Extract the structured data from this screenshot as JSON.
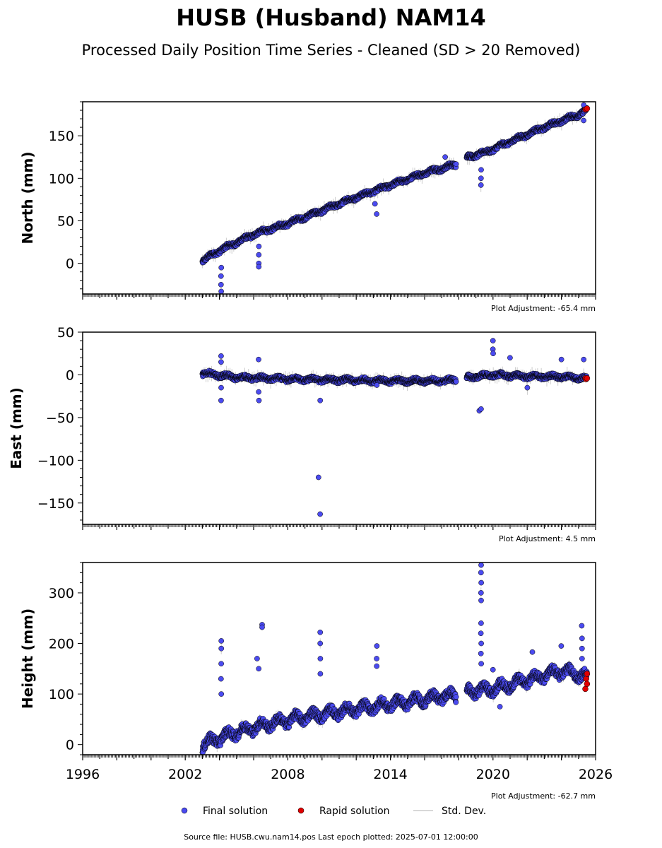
{
  "title": "HUSB (Husband) NAM14",
  "subtitle": "Processed Daily Position Time Series - Cleaned (SD > 20 Removed)",
  "footer": "Source file: HUSB.cwu.nam14.pos  Last epoch plotted: 2025-07-01 12:00:00",
  "legend": {
    "final": "Final solution",
    "rapid": "Rapid solution",
    "std": "Std. Dev."
  },
  "colors": {
    "final": "#4b4bf0",
    "rapid": "#e00000",
    "std": "#cccccc",
    "outline": "#000000"
  },
  "chart_data": [
    {
      "type": "scatter",
      "ylabel": "North (mm)",
      "adjustment": "Plot Adjustment: -65.4 mm",
      "xlim": [
        1996,
        2026
      ],
      "ylim": [
        -36,
        190
      ],
      "yticks": [
        0,
        50,
        100,
        150
      ],
      "xtick_labels": [
        "1996",
        "2002",
        "2008",
        "2014",
        "2020",
        "2026"
      ],
      "series": [
        {
          "name": "Final solution",
          "trend": [
            [
              2003.0,
              3
            ],
            [
              2004.0,
              15
            ],
            [
              2006.0,
              34
            ],
            [
              2008.0,
              47
            ],
            [
              2010.0,
              62
            ],
            [
              2012.0,
              78
            ],
            [
              2014.0,
              92
            ],
            [
              2016.0,
              106
            ],
            [
              2017.8,
              116
            ],
            [
              2018.5,
              125
            ],
            [
              2019.5,
              130
            ],
            [
              2021.0,
              143
            ],
            [
              2023.0,
              160
            ],
            [
              2025.0,
              175
            ],
            [
              2025.5,
              180
            ]
          ],
          "outliers": [
            [
              2004.1,
              -5
            ],
            [
              2004.1,
              -15
            ],
            [
              2004.1,
              -25
            ],
            [
              2004.1,
              -33
            ],
            [
              2006.3,
              20
            ],
            [
              2006.3,
              10
            ],
            [
              2006.3,
              0
            ],
            [
              2006.3,
              -4
            ],
            [
              2013.2,
              58
            ],
            [
              2013.1,
              70
            ],
            [
              2019.3,
              92
            ],
            [
              2019.3,
              100
            ],
            [
              2019.3,
              110
            ],
            [
              2017.2,
              125
            ],
            [
              2025.3,
              168
            ],
            [
              2025.3,
              186
            ]
          ]
        },
        {
          "name": "Rapid solution",
          "points": [
            [
              2025.4,
              181
            ],
            [
              2025.45,
              181
            ],
            [
              2025.5,
              182
            ]
          ]
        }
      ]
    },
    {
      "type": "scatter",
      "ylabel": "East (mm)",
      "adjustment": "Plot Adjustment: 4.5 mm",
      "xlim": [
        1996,
        2026
      ],
      "ylim": [
        -175,
        50
      ],
      "yticks": [
        -150,
        -100,
        -50,
        0,
        50
      ],
      "xtick_labels": [
        "1996",
        "2002",
        "2008",
        "2014",
        "2020",
        "2026"
      ],
      "series": [
        {
          "name": "Final solution",
          "trend": [
            [
              2003.0,
              2
            ],
            [
              2005.0,
              -3
            ],
            [
              2008.0,
              -5
            ],
            [
              2011.0,
              -6
            ],
            [
              2014.0,
              -7
            ],
            [
              2017.0,
              -7
            ],
            [
              2017.8,
              -6
            ],
            [
              2018.5,
              -3
            ],
            [
              2020.0,
              0
            ],
            [
              2022.0,
              -2
            ],
            [
              2024.0,
              -2
            ],
            [
              2025.5,
              -4
            ]
          ],
          "outliers": [
            [
              2004.1,
              22
            ],
            [
              2004.1,
              15
            ],
            [
              2004.1,
              -15
            ],
            [
              2004.1,
              -30
            ],
            [
              2006.3,
              18
            ],
            [
              2006.3,
              -20
            ],
            [
              2006.3,
              -30
            ],
            [
              2009.8,
              -120
            ],
            [
              2009.9,
              -163
            ],
            [
              2009.9,
              -30
            ],
            [
              2019.2,
              -42
            ],
            [
              2019.3,
              -40
            ],
            [
              2020.0,
              40
            ],
            [
              2020.0,
              30
            ],
            [
              2020.0,
              25
            ],
            [
              2021.0,
              20
            ],
            [
              2013.2,
              -12
            ],
            [
              2024.0,
              18
            ],
            [
              2025.3,
              18
            ],
            [
              2022.0,
              -15
            ]
          ]
        },
        {
          "name": "Rapid solution",
          "points": [
            [
              2025.4,
              -4
            ],
            [
              2025.45,
              -5
            ],
            [
              2025.5,
              -4
            ]
          ]
        }
      ]
    },
    {
      "type": "scatter",
      "ylabel": "Height (mm)",
      "adjustment": "Plot Adjustment: -62.7 mm",
      "xlim": [
        1996,
        2026
      ],
      "ylim": [
        -20,
        360
      ],
      "yticks": [
        0,
        100,
        200,
        300
      ],
      "xtick_labels": [
        "1996",
        "2002",
        "2008",
        "2014",
        "2020",
        "2026"
      ],
      "series": [
        {
          "name": "Final solution",
          "trend": [
            [
              2003.0,
              0
            ],
            [
              2005.0,
              25
            ],
            [
              2007.0,
              42
            ],
            [
              2009.0,
              55
            ],
            [
              2011.0,
              65
            ],
            [
              2013.0,
              75
            ],
            [
              2015.0,
              85
            ],
            [
              2017.0,
              95
            ],
            [
              2017.8,
              98
            ],
            [
              2018.5,
              105
            ],
            [
              2020.0,
              110
            ],
            [
              2022.0,
              128
            ],
            [
              2024.0,
              145
            ],
            [
              2025.5,
              135
            ]
          ],
          "outliers": [
            [
              2004.1,
              205
            ],
            [
              2004.1,
              190
            ],
            [
              2004.1,
              160
            ],
            [
              2004.1,
              130
            ],
            [
              2004.1,
              100
            ],
            [
              2006.2,
              170
            ],
            [
              2006.3,
              150
            ],
            [
              2006.5,
              237
            ],
            [
              2006.5,
              232
            ],
            [
              2009.9,
              222
            ],
            [
              2009.9,
              200
            ],
            [
              2009.9,
              170
            ],
            [
              2009.9,
              140
            ],
            [
              2013.2,
              195
            ],
            [
              2013.2,
              170
            ],
            [
              2013.2,
              155
            ],
            [
              2019.3,
              355
            ],
            [
              2019.3,
              340
            ],
            [
              2019.3,
              320
            ],
            [
              2019.3,
              300
            ],
            [
              2019.3,
              285
            ],
            [
              2019.3,
              240
            ],
            [
              2019.3,
              220
            ],
            [
              2019.3,
              200
            ],
            [
              2019.3,
              180
            ],
            [
              2019.3,
              160
            ],
            [
              2020.0,
              148
            ],
            [
              2025.2,
              235
            ],
            [
              2025.2,
              210
            ],
            [
              2025.2,
              190
            ],
            [
              2025.2,
              170
            ],
            [
              2022.3,
              183
            ],
            [
              2024.0,
              195
            ],
            [
              2020.4,
              75
            ]
          ]
        },
        {
          "name": "Rapid solution",
          "points": [
            [
              2025.4,
              110
            ],
            [
              2025.45,
              130
            ],
            [
              2025.5,
              140
            ],
            [
              2025.5,
              120
            ]
          ]
        }
      ]
    }
  ]
}
